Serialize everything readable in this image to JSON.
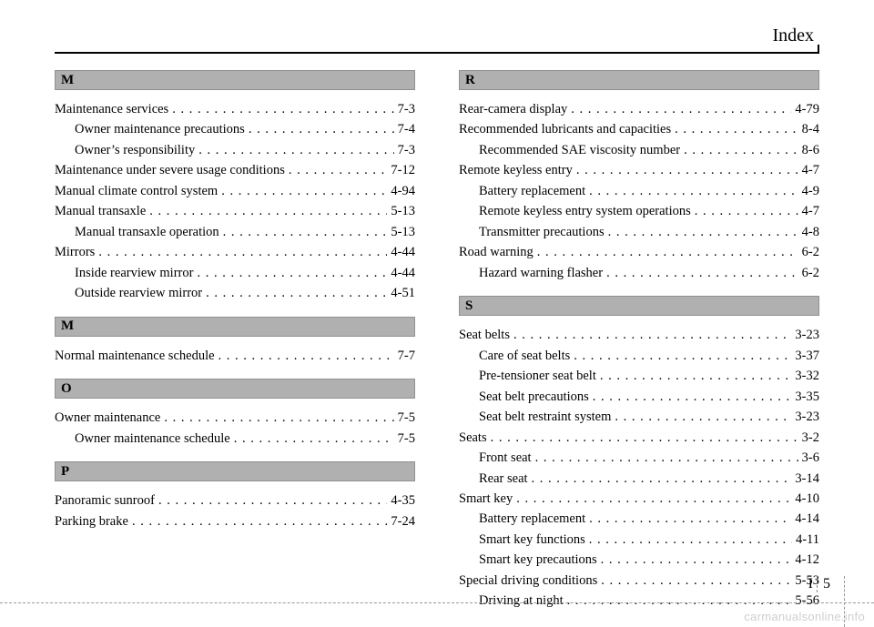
{
  "header": {
    "title": "Index"
  },
  "pageNumber": {
    "chapter": "I",
    "page": "5"
  },
  "watermark": "carmanualsonline.info",
  "left": [
    {
      "letter": "M",
      "entries": [
        {
          "label": "Maintenance services",
          "page": "7-3",
          "sub": false
        },
        {
          "label": "Owner maintenance precautions",
          "page": "7-4",
          "sub": true
        },
        {
          "label": "Owner’s responsibility",
          "page": "7-3",
          "sub": true
        },
        {
          "label": "Maintenance under severe usage conditions",
          "page": "7-12",
          "sub": false
        },
        {
          "label": "Manual climate control system",
          "page": "4-94",
          "sub": false
        },
        {
          "label": "Manual transaxle",
          "page": "5-13",
          "sub": false
        },
        {
          "label": "Manual transaxle operation",
          "page": "5-13",
          "sub": true
        },
        {
          "label": "Mirrors",
          "page": "4-44",
          "sub": false
        },
        {
          "label": "Inside rearview mirror",
          "page": "4-44",
          "sub": true
        },
        {
          "label": "Outside rearview mirror",
          "page": "4-51",
          "sub": true
        }
      ]
    },
    {
      "letter": "M",
      "entries": [
        {
          "label": "Normal maintenance schedule",
          "page": "7-7",
          "sub": false
        }
      ]
    },
    {
      "letter": "O",
      "entries": [
        {
          "label": "Owner maintenance",
          "page": "7-5",
          "sub": false
        },
        {
          "label": "Owner maintenance schedule",
          "page": "7-5",
          "sub": true
        }
      ]
    },
    {
      "letter": "P",
      "entries": [
        {
          "label": "Panoramic sunroof",
          "page": "4-35",
          "sub": false
        },
        {
          "label": "Parking brake",
          "page": "7-24",
          "sub": false
        }
      ]
    }
  ],
  "right": [
    {
      "letter": "R",
      "entries": [
        {
          "label": "Rear-camera display",
          "page": "4-79",
          "sub": false
        },
        {
          "label": "Recommended lubricants and capacities",
          "page": "8-4",
          "sub": false
        },
        {
          "label": "Recommended SAE viscosity number",
          "page": "8-6",
          "sub": true
        },
        {
          "label": "Remote keyless entry",
          "page": "4-7",
          "sub": false
        },
        {
          "label": "Battery replacement",
          "page": "4-9",
          "sub": true
        },
        {
          "label": "Remote keyless entry system operations",
          "page": "4-7",
          "sub": true
        },
        {
          "label": "Transmitter precautions",
          "page": "4-8",
          "sub": true
        },
        {
          "label": "Road warning",
          "page": "6-2",
          "sub": false
        },
        {
          "label": "Hazard warning flasher",
          "page": "6-2",
          "sub": true
        }
      ]
    },
    {
      "letter": "S",
      "entries": [
        {
          "label": "Seat belts",
          "page": "3-23",
          "sub": false
        },
        {
          "label": "Care of seat belts",
          "page": "3-37",
          "sub": true
        },
        {
          "label": "Pre-tensioner seat belt",
          "page": "3-32",
          "sub": true
        },
        {
          "label": "Seat belt precautions",
          "page": "3-35",
          "sub": true
        },
        {
          "label": "Seat belt restraint system",
          "page": "3-23",
          "sub": true
        },
        {
          "label": "Seats",
          "page": "3-2",
          "sub": false
        },
        {
          "label": "Front seat",
          "page": "3-6",
          "sub": true
        },
        {
          "label": "Rear seat",
          "page": "3-14",
          "sub": true
        },
        {
          "label": "Smart key",
          "page": "4-10",
          "sub": false
        },
        {
          "label": "Battery replacement",
          "page": "4-14",
          "sub": true
        },
        {
          "label": "Smart key functions",
          "page": "4-11",
          "sub": true
        },
        {
          "label": "Smart key precautions",
          "page": "4-12",
          "sub": true
        },
        {
          "label": "Special driving conditions",
          "page": "5-53",
          "sub": false
        },
        {
          "label": "Driving at night",
          "page": "5-56",
          "sub": true
        }
      ]
    }
  ]
}
